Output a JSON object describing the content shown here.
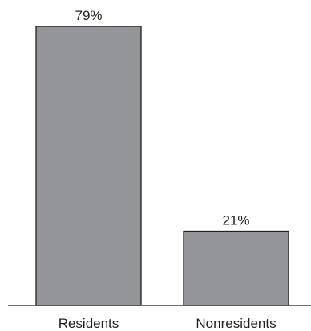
{
  "chart_data": {
    "type": "bar",
    "categories": [
      "Residents",
      "Nonresidents"
    ],
    "values": [
      79,
      21
    ],
    "data_labels": [
      "79%",
      "21%"
    ],
    "title": "",
    "xlabel": "",
    "ylabel": "",
    "ylim": [
      0,
      79
    ],
    "grid": false,
    "legend": "none",
    "colors": {
      "bar_fill": "#939598",
      "bar_stroke": "#231f20",
      "text": "#231f20"
    }
  }
}
